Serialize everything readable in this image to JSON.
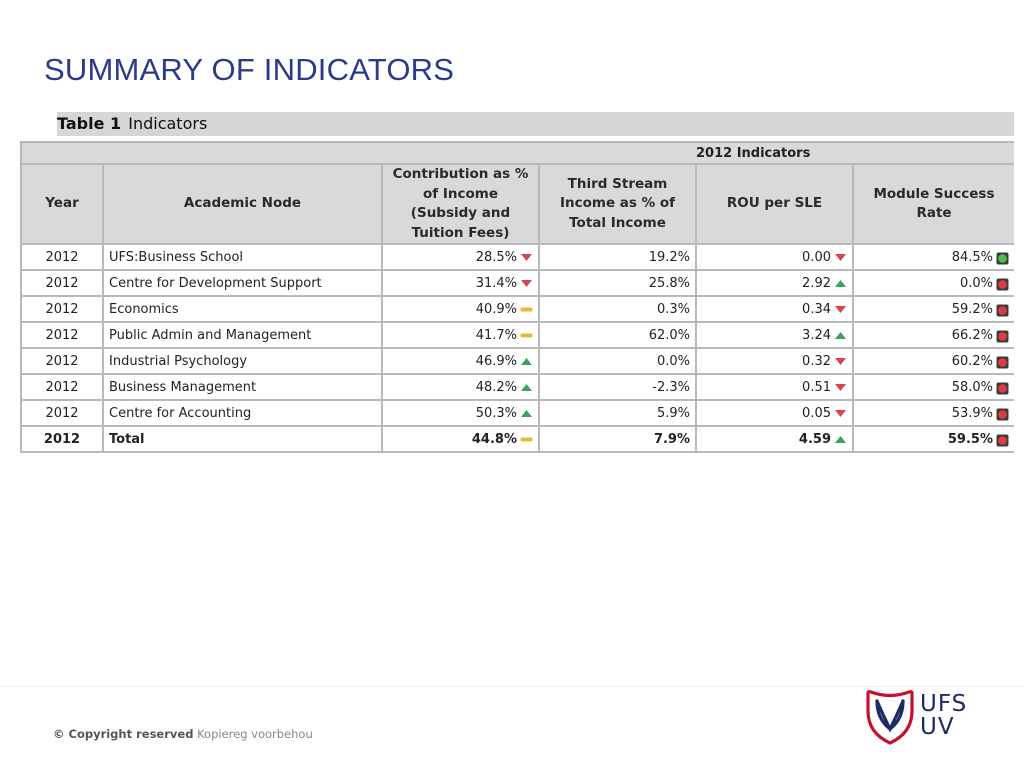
{
  "slide": {
    "title": "SUMMARY OF INDICATORS"
  },
  "table": {
    "caption_strong": "Table 1",
    "caption_text": "Indicators",
    "group_header": "2012 Indicators",
    "columns": [
      "Year",
      "Academic Node",
      "Contribution as % of Income (Subsidy and Tuition Fees)",
      "Third Stream Income as % of Total Income",
      "ROU per SLE",
      "Module Success Rate"
    ],
    "rows": [
      {
        "year": "2012",
        "node": "UFS:Business School",
        "contribution": "28.5%",
        "contribution_icon": "down-triangle-red",
        "third_stream": "19.2%",
        "rou": "0.00",
        "rou_icon": "down-triangle-red",
        "success": "84.5%",
        "success_icon": "green-light"
      },
      {
        "year": "2012",
        "node": "Centre for Development Support",
        "contribution": "31.4%",
        "contribution_icon": "down-triangle-red",
        "third_stream": "25.8%",
        "rou": "2.92",
        "rou_icon": "up-triangle-green",
        "success": "0.0%",
        "success_icon": "red-light"
      },
      {
        "year": "2012",
        "node": "Economics",
        "contribution": "40.9%",
        "contribution_icon": "dash-yellow",
        "third_stream": "0.3%",
        "rou": "0.34",
        "rou_icon": "down-triangle-red",
        "success": "59.2%",
        "success_icon": "red-light"
      },
      {
        "year": "2012",
        "node": "Public Admin and Management",
        "contribution": "41.7%",
        "contribution_icon": "dash-yellow",
        "third_stream": "62.0%",
        "rou": "3.24",
        "rou_icon": "up-triangle-green",
        "success": "66.2%",
        "success_icon": "red-light"
      },
      {
        "year": "2012",
        "node": "Industrial Psychology",
        "contribution": "46.9%",
        "contribution_icon": "up-triangle-green",
        "third_stream": "0.0%",
        "rou": "0.32",
        "rou_icon": "down-triangle-red",
        "success": "60.2%",
        "success_icon": "red-light"
      },
      {
        "year": "2012",
        "node": "Business Management",
        "contribution": "48.2%",
        "contribution_icon": "up-triangle-green",
        "third_stream": "-2.3%",
        "rou": "0.51",
        "rou_icon": "down-triangle-red",
        "success": "58.0%",
        "success_icon": "red-light"
      },
      {
        "year": "2012",
        "node": "Centre for Accounting",
        "contribution": "50.3%",
        "contribution_icon": "up-triangle-green",
        "third_stream": "5.9%",
        "rou": "0.05",
        "rou_icon": "down-triangle-red",
        "success": "53.9%",
        "success_icon": "red-light"
      }
    ],
    "total": {
      "year": "2012",
      "node": "Total",
      "contribution": "44.8%",
      "contribution_icon": "dash-yellow",
      "third_stream": "7.9%",
      "rou": "4.59",
      "rou_icon": "up-triangle-green",
      "success": "59.5%",
      "success_icon": "red-light"
    }
  },
  "footer": {
    "copyright_strong": "© Copyright reserved",
    "copyright_sub": "Kopiereg voorbehou",
    "logo_line1": "UFS",
    "logo_line2": "UV"
  },
  "colors": {
    "title": "#2b3a8c",
    "header_bg": "#d9d9d9",
    "border": "#b9b9b9",
    "up": "#3aa35a",
    "down": "#d9434e",
    "neutral": "#e8b838",
    "logo_red": "#c8102e",
    "logo_navy": "#1e2a66"
  }
}
